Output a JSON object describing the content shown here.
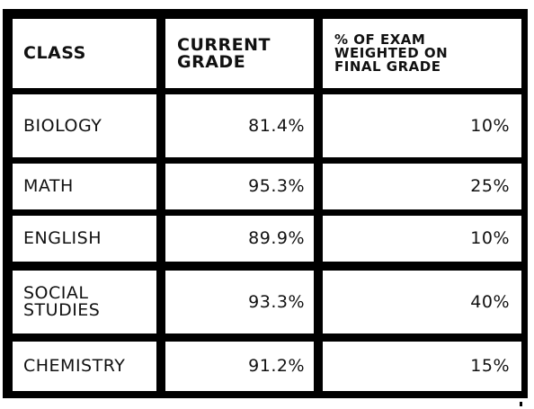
{
  "headers": {
    "class": "CLASS",
    "current_grade": "CURRENT\nGRADE",
    "exam_weight": "% OF EXAM\nWEIGHTED ON\nFINAL GRADE"
  },
  "rows": [
    {
      "class": "BIOLOGY",
      "current_grade": "81.4%",
      "exam_weight": "10%"
    },
    {
      "class": "MATH",
      "current_grade": "95.3%",
      "exam_weight": "25%"
    },
    {
      "class": "ENGLISH",
      "current_grade": "89.9%",
      "exam_weight": "10%"
    },
    {
      "class": "SOCIAL\nSTUDIES",
      "current_grade": "93.3%",
      "exam_weight": "40%"
    },
    {
      "class": "CHEMISTRY",
      "current_grade": "91.2%",
      "exam_weight": "15%"
    }
  ]
}
